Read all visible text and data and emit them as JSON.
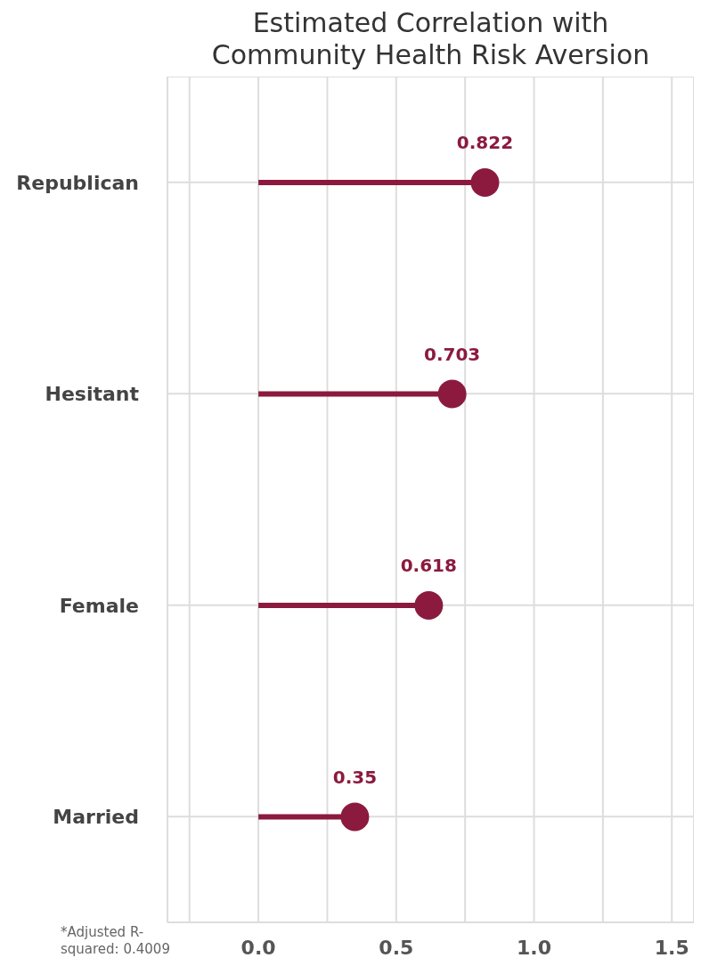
{
  "chart_data": {
    "type": "lollipop",
    "orientation": "horizontal",
    "title": "Estimated Correlation with\nCommunity Health Risk Aversion",
    "categories": [
      "Republican",
      "Hesitant",
      "Female",
      "Married"
    ],
    "values": [
      0.822,
      0.703,
      0.618,
      0.35
    ],
    "color": "#8b1a3e",
    "data_labels": true,
    "xlim": [
      -0.33,
      1.58
    ],
    "xticks": [
      {
        "value": -0.25,
        "label": null
      },
      {
        "value": 0,
        "label": "0.0"
      },
      {
        "value": 0.25,
        "label": null
      },
      {
        "value": 0.5,
        "label": "0.5"
      },
      {
        "value": 0.75,
        "label": null
      },
      {
        "value": 1,
        "label": "1.0"
      },
      {
        "value": 1.25,
        "label": null
      },
      {
        "value": 1.5,
        "label": "1.5"
      }
    ],
    "grid": true,
    "annotations": [
      "*Adjusted R-squared: 0.4009"
    ]
  }
}
